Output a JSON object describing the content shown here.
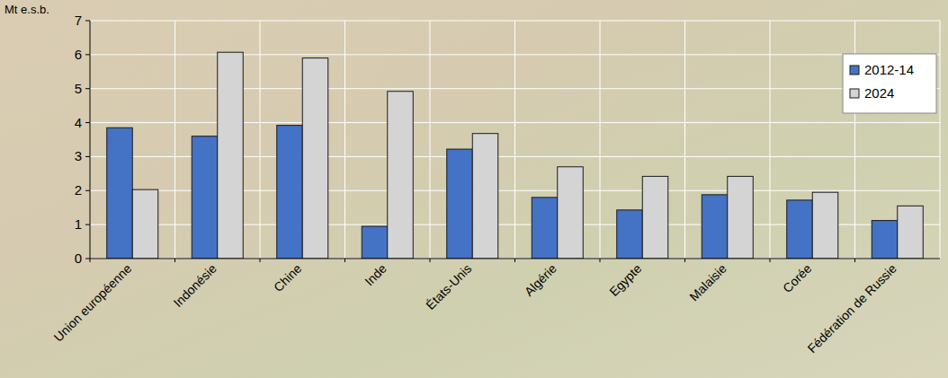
{
  "chart_data": {
    "type": "bar",
    "y_label": "Mt e.s.b.",
    "categories": [
      "Union européenne",
      "Indonésie",
      "Chine",
      "Inde",
      "États-Unis",
      "Algérie",
      "Egypte",
      "Malaisie",
      "Corée",
      "Fédération de Russie"
    ],
    "series": [
      {
        "name": "2012-14",
        "color": "#4472c4",
        "values": [
          3.85,
          3.6,
          3.92,
          0.95,
          3.22,
          1.8,
          1.43,
          1.88,
          1.72,
          1.12
        ]
      },
      {
        "name": "2024",
        "color": "#d4d4d4",
        "values": [
          2.03,
          6.07,
          5.9,
          4.92,
          3.68,
          2.7,
          2.42,
          2.42,
          1.95,
          1.55
        ]
      }
    ],
    "ylim": [
      0,
      7
    ],
    "yticks": [
      0,
      1,
      2,
      3,
      4,
      5,
      6,
      7
    ],
    "grid": true,
    "legend": "upper right"
  }
}
